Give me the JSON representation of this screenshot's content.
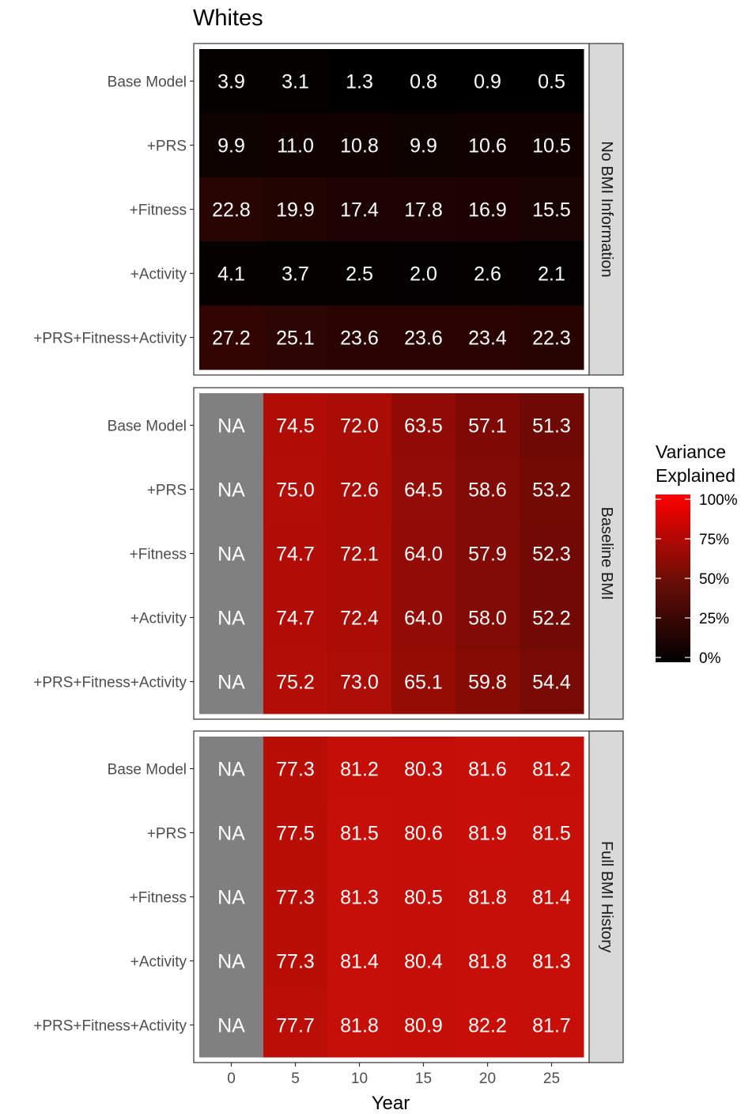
{
  "chart_data": {
    "type": "heatmap",
    "title": "Whites",
    "xlabel": "Year",
    "x": [
      0,
      5,
      10,
      15,
      20,
      25
    ],
    "x_ticks": [
      "0",
      "5",
      "10",
      "15",
      "20",
      "25"
    ],
    "rows": [
      "Base Model",
      "+PRS",
      "+Fitness",
      "+Activity",
      "+PRS+Fitness+Activity"
    ],
    "legend": {
      "title": "Variance Explained",
      "labels": [
        "100%",
        "75%",
        "50%",
        "25%",
        "0%"
      ],
      "scale_min": 0,
      "scale_max": 100,
      "color_low": "#000000",
      "color_high": "#ff0000",
      "na_color": "#808080"
    },
    "panels": [
      {
        "name": "No BMI Information",
        "values": [
          [
            "3.9",
            "3.1",
            "1.3",
            "0.8",
            "0.9",
            "0.5"
          ],
          [
            "9.9",
            "11.0",
            "10.8",
            "9.9",
            "10.6",
            "10.5"
          ],
          [
            "22.8",
            "19.9",
            "17.4",
            "17.8",
            "16.9",
            "15.5"
          ],
          [
            "4.1",
            "3.7",
            "2.5",
            "2.0",
            "2.6",
            "2.1"
          ],
          [
            "27.2",
            "25.1",
            "23.6",
            "23.6",
            "23.4",
            "22.3"
          ]
        ]
      },
      {
        "name": "Baseline BMI",
        "values": [
          [
            "NA",
            "74.5",
            "72.0",
            "63.5",
            "57.1",
            "51.3"
          ],
          [
            "NA",
            "75.0",
            "72.6",
            "64.5",
            "58.6",
            "53.2"
          ],
          [
            "NA",
            "74.7",
            "72.1",
            "64.0",
            "57.9",
            "52.3"
          ],
          [
            "NA",
            "74.7",
            "72.4",
            "64.0",
            "58.0",
            "52.2"
          ],
          [
            "NA",
            "75.2",
            "73.0",
            "65.1",
            "59.8",
            "54.4"
          ]
        ]
      },
      {
        "name": "Full BMI History",
        "values": [
          [
            "NA",
            "77.3",
            "81.2",
            "80.3",
            "81.6",
            "81.2"
          ],
          [
            "NA",
            "77.5",
            "81.5",
            "80.6",
            "81.9",
            "81.5"
          ],
          [
            "NA",
            "77.3",
            "81.3",
            "80.5",
            "81.8",
            "81.4"
          ],
          [
            "NA",
            "77.3",
            "81.4",
            "80.4",
            "81.8",
            "81.3"
          ],
          [
            "NA",
            "77.7",
            "81.8",
            "80.9",
            "82.2",
            "81.7"
          ]
        ]
      }
    ]
  }
}
